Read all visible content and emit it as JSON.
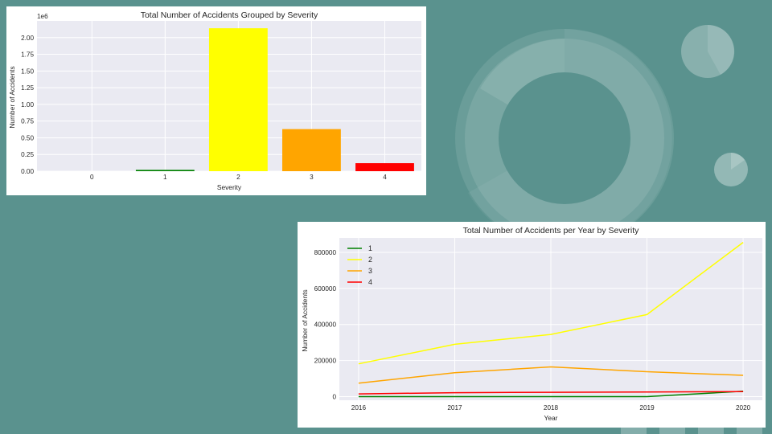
{
  "colors": {
    "background": "#5a928e",
    "plot_bg": "#eaeaf2",
    "grid": "#ffffff",
    "severity_1": "#008000",
    "severity_2": "#ffff00",
    "severity_3": "#ffa500",
    "severity_4": "#ff0000"
  },
  "chart_data": [
    {
      "type": "bar",
      "title": "Total Number of Accidents Grouped by Severity",
      "xlabel": "Severity",
      "ylabel": "Number of Accidents",
      "y_offset_label": "1e6",
      "categories": [
        "1",
        "2",
        "3",
        "4"
      ],
      "values": [
        0.02,
        2.14,
        0.63,
        0.12
      ],
      "bar_colors": [
        "#008000",
        "#ffff00",
        "#ffa500",
        "#ff0000"
      ],
      "x_extra_tick": "0",
      "yticks": [
        "0.00",
        "0.25",
        "0.50",
        "0.75",
        "1.00",
        "1.25",
        "1.50",
        "1.75",
        "2.00"
      ],
      "ylim": [
        0,
        2.25
      ],
      "grid": true
    },
    {
      "type": "line",
      "title": "Total Number of Accidents per Year by Severity",
      "xlabel": "Year",
      "ylabel": "Number of Accidents",
      "x": [
        "2016",
        "2017",
        "2018",
        "2019",
        "2020"
      ],
      "ylim": [
        -20000,
        880000
      ],
      "yticks": [
        "0",
        "200000",
        "400000",
        "600000",
        "800000"
      ],
      "legend": "top-left",
      "grid": true,
      "series": [
        {
          "name": "1",
          "color": "#008000",
          "values": [
            0,
            0,
            0,
            0,
            30000
          ]
        },
        {
          "name": "2",
          "color": "#ffff00",
          "values": [
            182000,
            290000,
            345000,
            455000,
            855000
          ]
        },
        {
          "name": "3",
          "color": "#ffa500",
          "values": [
            75000,
            133000,
            165000,
            138000,
            118000
          ]
        },
        {
          "name": "4",
          "color": "#ff0000",
          "values": [
            15000,
            22000,
            24000,
            26000,
            28000
          ]
        }
      ]
    }
  ]
}
